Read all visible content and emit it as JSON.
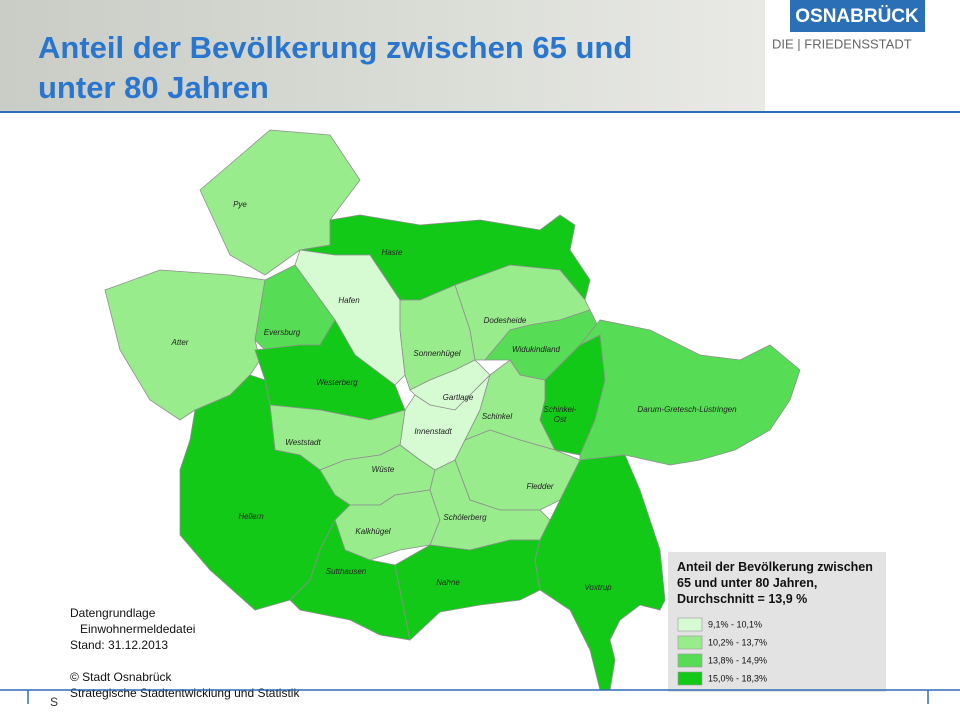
{
  "header": {
    "title": "Anteil der Bevölkerung zwischen 65 und unter 80 Jahren",
    "logo": "OSNABRÜCK",
    "tagline": "DIE | FRIEDENSSTADT"
  },
  "legend": {
    "title": "Anteil der Bevölkerung zwischen 65 und unter 80 Jahren, Durchschnitt = 13,9 %",
    "classes": [
      {
        "label": "9,1% - 10,1%",
        "color": "#d6fbd3"
      },
      {
        "label": "10,2% - 13,7%",
        "color": "#98ec8c"
      },
      {
        "label": "13,8% - 14,9%",
        "color": "#57dc55"
      },
      {
        "label": "15,0% - 18,3%",
        "color": "#12c918"
      }
    ]
  },
  "districts": [
    {
      "name": "Pye",
      "class": 1
    },
    {
      "name": "Haste",
      "class": 3
    },
    {
      "name": "Hafen",
      "class": 0
    },
    {
      "name": "Atter",
      "class": 1
    },
    {
      "name": "Eversburg",
      "class": 2
    },
    {
      "name": "Westerberg",
      "class": 3
    },
    {
      "name": "Sonnenhügel",
      "class": 1
    },
    {
      "name": "Dodesheide",
      "class": 1
    },
    {
      "name": "Widukindland",
      "class": 2
    },
    {
      "name": "Gartlage",
      "class": 0
    },
    {
      "name": "Innenstadt",
      "class": 0
    },
    {
      "name": "Schinkel",
      "class": 1
    },
    {
      "name": "Schinkel-Ost",
      "class": 3
    },
    {
      "name": "Darum-Gretesch-Lüstringen",
      "class": 2
    },
    {
      "name": "Weststadt",
      "class": 1
    },
    {
      "name": "Wüste",
      "class": 1
    },
    {
      "name": "Fledder",
      "class": 1
    },
    {
      "name": "Hellern",
      "class": 3
    },
    {
      "name": "Kalkhügel",
      "class": 1
    },
    {
      "name": "Schölerberg",
      "class": 1
    },
    {
      "name": "Sutthausen",
      "class": 3
    },
    {
      "name": "Nahne",
      "class": 3
    },
    {
      "name": "Voxtrup",
      "class": 3
    }
  ],
  "source": {
    "lines": [
      "Datengrundlage",
      "Einwohnermeldedatei",
      "Stand: 31.12.2013",
      "© Stadt Osnabrück",
      "Strategische Stadtentwicklung und Statistik"
    ]
  },
  "footer": {
    "text": "S"
  }
}
